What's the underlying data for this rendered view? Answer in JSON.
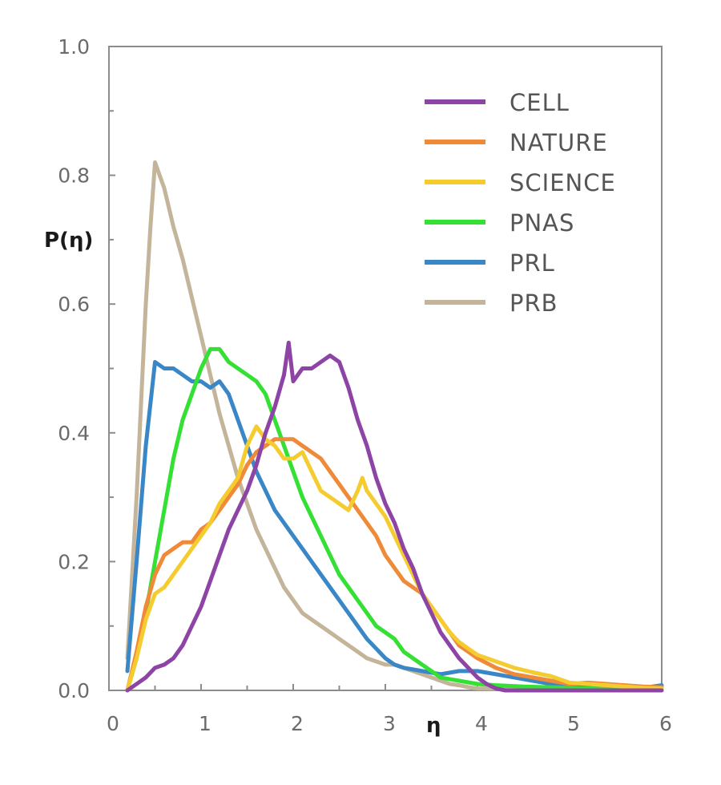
{
  "chart_data": {
    "type": "line",
    "title": "",
    "xlabel": "η",
    "ylabel": "P(η)",
    "xlim": [
      0,
      6
    ],
    "ylim": [
      0,
      1.0
    ],
    "x_ticks": [
      {
        "value": 0,
        "label": "0"
      },
      {
        "value": 1,
        "label": "1"
      },
      {
        "value": 2,
        "label": "2"
      },
      {
        "value": 3,
        "label": "3"
      },
      {
        "value": 4,
        "label": "4"
      },
      {
        "value": 5,
        "label": "5"
      },
      {
        "value": 6,
        "label": "6"
      }
    ],
    "y_ticks": [
      {
        "value": 0.0,
        "label": "0.0"
      },
      {
        "value": 0.2,
        "label": "0.2"
      },
      {
        "value": 0.4,
        "label": "0.4"
      },
      {
        "value": 0.6,
        "label": "0.6"
      },
      {
        "value": 0.8,
        "label": "0.8"
      },
      {
        "value": 1.0,
        "label": "1.0"
      }
    ],
    "y_minor_ticks": [
      0.1,
      0.3,
      0.5,
      0.7,
      0.9
    ],
    "grid": false,
    "legend_position": "top-right",
    "series": [
      {
        "name": "CELL",
        "color": "#8e44a5",
        "points": [
          [
            0.2,
            0.0
          ],
          [
            0.3,
            0.01
          ],
          [
            0.4,
            0.02
          ],
          [
            0.5,
            0.035
          ],
          [
            0.6,
            0.04
          ],
          [
            0.7,
            0.05
          ],
          [
            0.8,
            0.07
          ],
          [
            0.9,
            0.1
          ],
          [
            1.0,
            0.13
          ],
          [
            1.1,
            0.17
          ],
          [
            1.2,
            0.21
          ],
          [
            1.3,
            0.25
          ],
          [
            1.4,
            0.28
          ],
          [
            1.5,
            0.31
          ],
          [
            1.6,
            0.35
          ],
          [
            1.7,
            0.4
          ],
          [
            1.8,
            0.44
          ],
          [
            1.9,
            0.49
          ],
          [
            1.95,
            0.54
          ],
          [
            2.0,
            0.48
          ],
          [
            2.1,
            0.5
          ],
          [
            2.2,
            0.5
          ],
          [
            2.3,
            0.51
          ],
          [
            2.4,
            0.52
          ],
          [
            2.5,
            0.51
          ],
          [
            2.6,
            0.47
          ],
          [
            2.7,
            0.42
          ],
          [
            2.8,
            0.38
          ],
          [
            2.9,
            0.33
          ],
          [
            3.0,
            0.29
          ],
          [
            3.1,
            0.26
          ],
          [
            3.2,
            0.22
          ],
          [
            3.3,
            0.19
          ],
          [
            3.4,
            0.15
          ],
          [
            3.5,
            0.12
          ],
          [
            3.6,
            0.09
          ],
          [
            3.7,
            0.07
          ],
          [
            3.8,
            0.05
          ],
          [
            3.9,
            0.035
          ],
          [
            4.0,
            0.02
          ],
          [
            4.1,
            0.01
          ],
          [
            4.2,
            0.003
          ],
          [
            4.3,
            0.0
          ],
          [
            5.0,
            0.0
          ],
          [
            6.0,
            0.0
          ]
        ]
      },
      {
        "name": "NATURE",
        "color": "#ee8a38",
        "points": [
          [
            0.2,
            0.0
          ],
          [
            0.3,
            0.06
          ],
          [
            0.4,
            0.13
          ],
          [
            0.5,
            0.18
          ],
          [
            0.6,
            0.21
          ],
          [
            0.7,
            0.22
          ],
          [
            0.8,
            0.23
          ],
          [
            0.9,
            0.23
          ],
          [
            1.0,
            0.25
          ],
          [
            1.1,
            0.26
          ],
          [
            1.2,
            0.28
          ],
          [
            1.3,
            0.3
          ],
          [
            1.4,
            0.32
          ],
          [
            1.5,
            0.35
          ],
          [
            1.6,
            0.37
          ],
          [
            1.7,
            0.38
          ],
          [
            1.8,
            0.39
          ],
          [
            1.9,
            0.39
          ],
          [
            2.0,
            0.39
          ],
          [
            2.1,
            0.38
          ],
          [
            2.2,
            0.37
          ],
          [
            2.3,
            0.36
          ],
          [
            2.4,
            0.34
          ],
          [
            2.5,
            0.32
          ],
          [
            2.6,
            0.3
          ],
          [
            2.7,
            0.28
          ],
          [
            2.8,
            0.26
          ],
          [
            2.9,
            0.24
          ],
          [
            3.0,
            0.21
          ],
          [
            3.1,
            0.19
          ],
          [
            3.2,
            0.17
          ],
          [
            3.3,
            0.16
          ],
          [
            3.4,
            0.15
          ],
          [
            3.5,
            0.13
          ],
          [
            3.6,
            0.11
          ],
          [
            3.7,
            0.09
          ],
          [
            3.8,
            0.07
          ],
          [
            3.9,
            0.06
          ],
          [
            4.0,
            0.05
          ],
          [
            4.2,
            0.035
          ],
          [
            4.4,
            0.025
          ],
          [
            4.6,
            0.02
          ],
          [
            4.8,
            0.015
          ],
          [
            5.0,
            0.01
          ],
          [
            5.2,
            0.012
          ],
          [
            5.4,
            0.01
          ],
          [
            5.6,
            0.008
          ],
          [
            5.8,
            0.006
          ],
          [
            6.0,
            0.005
          ]
        ]
      },
      {
        "name": "SCIENCE",
        "color": "#f5cc30",
        "points": [
          [
            0.2,
            0.0
          ],
          [
            0.3,
            0.05
          ],
          [
            0.4,
            0.11
          ],
          [
            0.5,
            0.15
          ],
          [
            0.6,
            0.16
          ],
          [
            0.7,
            0.18
          ],
          [
            0.8,
            0.2
          ],
          [
            0.9,
            0.22
          ],
          [
            1.0,
            0.24
          ],
          [
            1.1,
            0.26
          ],
          [
            1.2,
            0.29
          ],
          [
            1.3,
            0.31
          ],
          [
            1.4,
            0.33
          ],
          [
            1.5,
            0.38
          ],
          [
            1.6,
            0.41
          ],
          [
            1.7,
            0.39
          ],
          [
            1.8,
            0.38
          ],
          [
            1.9,
            0.36
          ],
          [
            2.0,
            0.36
          ],
          [
            2.1,
            0.37
          ],
          [
            2.2,
            0.34
          ],
          [
            2.3,
            0.31
          ],
          [
            2.4,
            0.3
          ],
          [
            2.5,
            0.29
          ],
          [
            2.6,
            0.28
          ],
          [
            2.7,
            0.31
          ],
          [
            2.75,
            0.33
          ],
          [
            2.8,
            0.31
          ],
          [
            2.9,
            0.29
          ],
          [
            3.0,
            0.27
          ],
          [
            3.1,
            0.24
          ],
          [
            3.2,
            0.21
          ],
          [
            3.3,
            0.18
          ],
          [
            3.4,
            0.15
          ],
          [
            3.5,
            0.13
          ],
          [
            3.6,
            0.11
          ],
          [
            3.7,
            0.09
          ],
          [
            3.8,
            0.075
          ],
          [
            3.9,
            0.065
          ],
          [
            4.0,
            0.055
          ],
          [
            4.2,
            0.045
          ],
          [
            4.4,
            0.035
          ],
          [
            4.6,
            0.028
          ],
          [
            4.8,
            0.022
          ],
          [
            5.0,
            0.012
          ],
          [
            5.2,
            0.01
          ],
          [
            5.4,
            0.008
          ],
          [
            5.6,
            0.006
          ],
          [
            5.8,
            0.004
          ],
          [
            6.0,
            0.003
          ]
        ]
      },
      {
        "name": "PNAS",
        "color": "#33e033",
        "points": [
          [
            0.2,
            0.0
          ],
          [
            0.3,
            0.05
          ],
          [
            0.4,
            0.12
          ],
          [
            0.5,
            0.2
          ],
          [
            0.6,
            0.28
          ],
          [
            0.7,
            0.36
          ],
          [
            0.8,
            0.42
          ],
          [
            0.9,
            0.46
          ],
          [
            1.0,
            0.5
          ],
          [
            1.1,
            0.53
          ],
          [
            1.2,
            0.53
          ],
          [
            1.3,
            0.51
          ],
          [
            1.4,
            0.5
          ],
          [
            1.5,
            0.49
          ],
          [
            1.6,
            0.48
          ],
          [
            1.7,
            0.46
          ],
          [
            1.8,
            0.42
          ],
          [
            1.9,
            0.38
          ],
          [
            2.0,
            0.34
          ],
          [
            2.1,
            0.3
          ],
          [
            2.2,
            0.27
          ],
          [
            2.3,
            0.24
          ],
          [
            2.4,
            0.21
          ],
          [
            2.5,
            0.18
          ],
          [
            2.6,
            0.16
          ],
          [
            2.7,
            0.14
          ],
          [
            2.8,
            0.12
          ],
          [
            2.9,
            0.1
          ],
          [
            3.0,
            0.09
          ],
          [
            3.1,
            0.08
          ],
          [
            3.2,
            0.06
          ],
          [
            3.3,
            0.05
          ],
          [
            3.4,
            0.04
          ],
          [
            3.5,
            0.03
          ],
          [
            3.6,
            0.02
          ],
          [
            3.8,
            0.015
          ],
          [
            4.0,
            0.01
          ],
          [
            4.2,
            0.008
          ],
          [
            4.5,
            0.006
          ],
          [
            5.0,
            0.004
          ],
          [
            5.5,
            0.002
          ],
          [
            6.0,
            0.001
          ]
        ]
      },
      {
        "name": "PRL",
        "color": "#3a87c7",
        "points": [
          [
            0.2,
            0.03
          ],
          [
            0.3,
            0.2
          ],
          [
            0.4,
            0.38
          ],
          [
            0.5,
            0.51
          ],
          [
            0.6,
            0.5
          ],
          [
            0.7,
            0.5
          ],
          [
            0.8,
            0.49
          ],
          [
            0.9,
            0.48
          ],
          [
            1.0,
            0.48
          ],
          [
            1.1,
            0.47
          ],
          [
            1.2,
            0.48
          ],
          [
            1.3,
            0.46
          ],
          [
            1.4,
            0.42
          ],
          [
            1.5,
            0.38
          ],
          [
            1.6,
            0.34
          ],
          [
            1.7,
            0.31
          ],
          [
            1.8,
            0.28
          ],
          [
            1.9,
            0.26
          ],
          [
            2.0,
            0.24
          ],
          [
            2.1,
            0.22
          ],
          [
            2.2,
            0.2
          ],
          [
            2.3,
            0.18
          ],
          [
            2.4,
            0.16
          ],
          [
            2.5,
            0.14
          ],
          [
            2.6,
            0.12
          ],
          [
            2.7,
            0.1
          ],
          [
            2.8,
            0.08
          ],
          [
            2.9,
            0.065
          ],
          [
            3.0,
            0.05
          ],
          [
            3.1,
            0.04
          ],
          [
            3.2,
            0.035
          ],
          [
            3.4,
            0.03
          ],
          [
            3.6,
            0.025
          ],
          [
            3.8,
            0.03
          ],
          [
            4.0,
            0.03
          ],
          [
            4.2,
            0.025
          ],
          [
            4.4,
            0.02
          ],
          [
            4.6,
            0.015
          ],
          [
            4.8,
            0.01
          ],
          [
            5.0,
            0.008
          ],
          [
            5.4,
            0.006
          ],
          [
            5.8,
            0.004
          ],
          [
            6.0,
            0.008
          ]
        ]
      },
      {
        "name": "PRB",
        "color": "#c3b49a",
        "points": [
          [
            0.2,
            0.05
          ],
          [
            0.3,
            0.3
          ],
          [
            0.4,
            0.6
          ],
          [
            0.45,
            0.72
          ],
          [
            0.5,
            0.82
          ],
          [
            0.6,
            0.78
          ],
          [
            0.7,
            0.72
          ],
          [
            0.8,
            0.67
          ],
          [
            0.9,
            0.61
          ],
          [
            1.0,
            0.55
          ],
          [
            1.1,
            0.49
          ],
          [
            1.2,
            0.43
          ],
          [
            1.3,
            0.38
          ],
          [
            1.4,
            0.33
          ],
          [
            1.5,
            0.29
          ],
          [
            1.6,
            0.25
          ],
          [
            1.7,
            0.22
          ],
          [
            1.8,
            0.19
          ],
          [
            1.9,
            0.16
          ],
          [
            2.0,
            0.14
          ],
          [
            2.1,
            0.12
          ],
          [
            2.2,
            0.11
          ],
          [
            2.3,
            0.1
          ],
          [
            2.4,
            0.09
          ],
          [
            2.5,
            0.08
          ],
          [
            2.6,
            0.07
          ],
          [
            2.7,
            0.06
          ],
          [
            2.8,
            0.05
          ],
          [
            2.9,
            0.045
          ],
          [
            3.0,
            0.04
          ],
          [
            3.1,
            0.04
          ],
          [
            3.2,
            0.035
          ],
          [
            3.3,
            0.03
          ],
          [
            3.4,
            0.025
          ],
          [
            3.5,
            0.02
          ],
          [
            3.6,
            0.015
          ],
          [
            3.7,
            0.01
          ],
          [
            3.8,
            0.008
          ],
          [
            3.9,
            0.005
          ],
          [
            4.0,
            0.003
          ],
          [
            4.5,
            0.002
          ],
          [
            5.0,
            0.001
          ],
          [
            6.0,
            0.0
          ]
        ]
      }
    ]
  }
}
